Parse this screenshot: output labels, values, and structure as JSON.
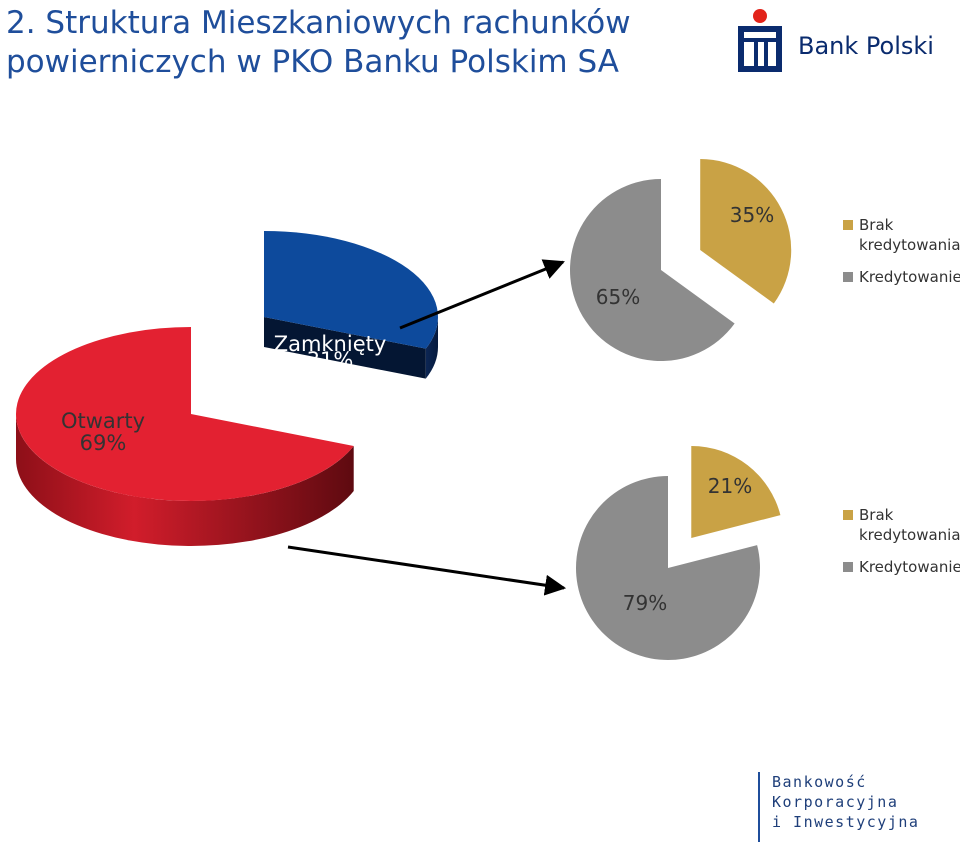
{
  "header": {
    "title_line1": "2. Struktura Mieszkaniowych rachunków",
    "title_line2": "powierniczych w PKO Banku Polskim SA"
  },
  "logo": {
    "text": "Bank Polski",
    "brand_color": "#0a2b6e",
    "accent_color": "#e2231a"
  },
  "footer": {
    "line1": "Bankowość",
    "line2": "Korporacyjna",
    "line3": "i Inwestycyjna"
  },
  "chart_data": [
    {
      "type": "pie",
      "style": "3d-exploded",
      "slices": [
        {
          "label": "Otwarty",
          "value": 69,
          "display": "69%",
          "color": "#e32131"
        },
        {
          "label": "Zamknięty",
          "value": 31,
          "display": "31%",
          "color": "#0d4a9c"
        }
      ]
    },
    {
      "type": "pie",
      "style": "exploded",
      "slices": [
        {
          "label": "Kredytowanie",
          "value": 65,
          "display": "65%",
          "color": "#8c8c8c"
        },
        {
          "label": "Brak kredytowania",
          "value": 35,
          "display": "35%",
          "color": "#c9a245"
        }
      ],
      "legend": [
        "Brak kredytowania",
        "Kredytowanie"
      ],
      "legend_position": "right"
    },
    {
      "type": "pie",
      "style": "exploded",
      "slices": [
        {
          "label": "Kredytowanie",
          "value": 79,
          "display": "79%",
          "color": "#8c8c8c"
        },
        {
          "label": "Brak kredytowania",
          "value": 21,
          "display": "21%",
          "color": "#c9a245"
        }
      ],
      "legend": [
        "Brak kredytowania",
        "Kredytowanie"
      ],
      "legend_position": "right"
    }
  ]
}
